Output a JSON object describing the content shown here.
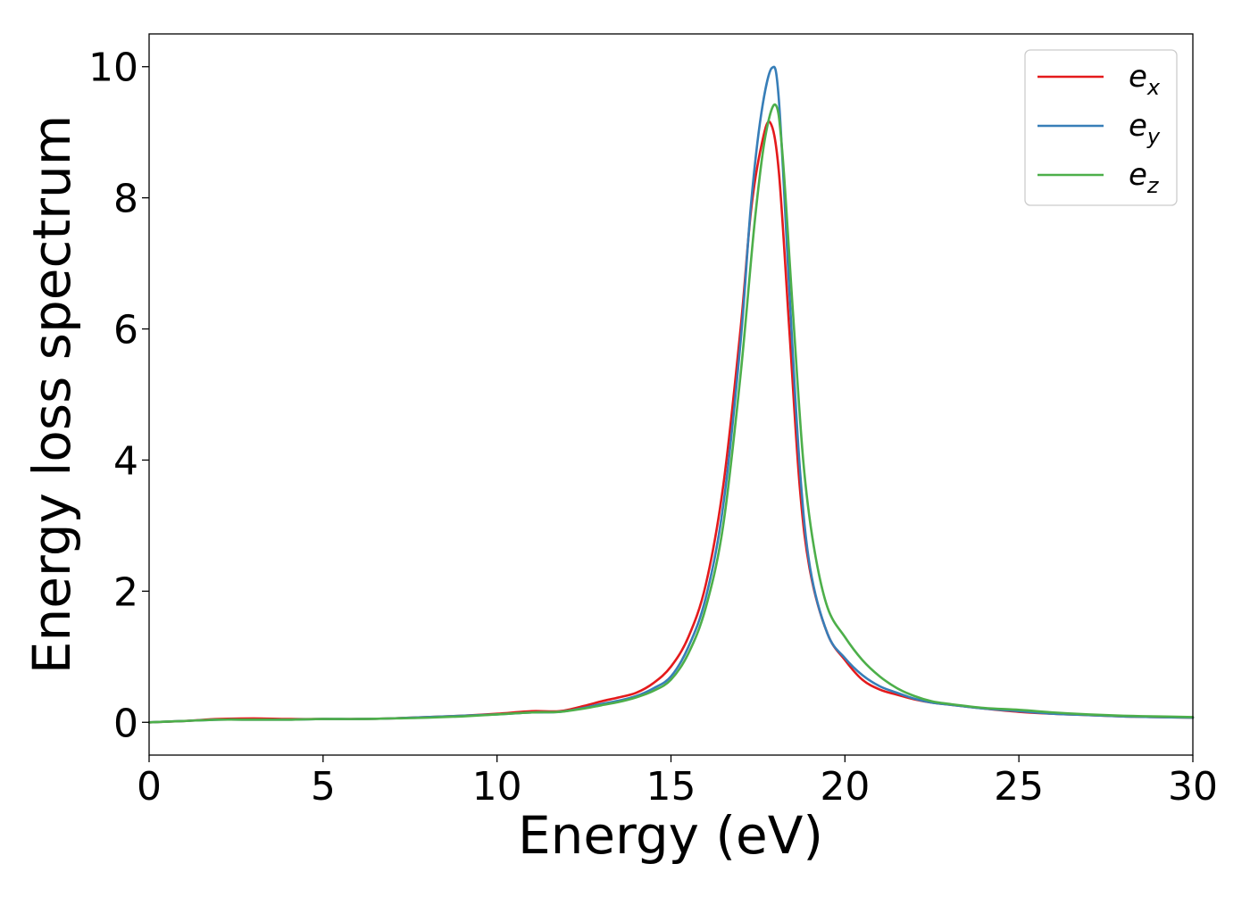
{
  "chart_data": {
    "type": "line",
    "title": "",
    "xlabel": "Energy (eV)",
    "ylabel": "Energy loss spectrum",
    "xlim": [
      0,
      30
    ],
    "ylim": [
      -0.5,
      10.5
    ],
    "xticks": [
      0,
      5,
      10,
      15,
      20,
      25,
      30
    ],
    "yticks": [
      0,
      2,
      4,
      6,
      8,
      10
    ],
    "grid": false,
    "legend_position": "top-right",
    "series": [
      {
        "name": "e",
        "subscript": "x",
        "color": "#e41a1c",
        "x": [
          0,
          1,
          2,
          3,
          4,
          5,
          6,
          7,
          8,
          9,
          10,
          11,
          11.8,
          12.5,
          13,
          13.5,
          14,
          14.5,
          15,
          15.5,
          16,
          16.5,
          17,
          17.3,
          17.6,
          17.85,
          18.1,
          18.4,
          18.7,
          19,
          19.5,
          20,
          20.5,
          21,
          21.5,
          22,
          22.5,
          23,
          24,
          25,
          26,
          27,
          28,
          29,
          30
        ],
        "y": [
          0.0,
          0.02,
          0.05,
          0.06,
          0.05,
          0.05,
          0.05,
          0.06,
          0.08,
          0.1,
          0.13,
          0.17,
          0.17,
          0.25,
          0.32,
          0.38,
          0.45,
          0.6,
          0.85,
          1.3,
          2.1,
          3.6,
          6.0,
          7.8,
          8.8,
          9.15,
          8.4,
          6.0,
          3.6,
          2.3,
          1.35,
          0.95,
          0.65,
          0.5,
          0.42,
          0.35,
          0.3,
          0.27,
          0.21,
          0.16,
          0.13,
          0.11,
          0.09,
          0.08,
          0.07
        ]
      },
      {
        "name": "e",
        "subscript": "y",
        "color": "#377eb8",
        "x": [
          0,
          1,
          2,
          3,
          4,
          5,
          6,
          7,
          8,
          9,
          10,
          11,
          11.8,
          12.5,
          13,
          13.5,
          14,
          14.5,
          15,
          15.5,
          16,
          16.5,
          17,
          17.3,
          17.6,
          17.9,
          18.1,
          18.4,
          18.7,
          19,
          19.5,
          20,
          20.5,
          21,
          21.5,
          22,
          22.5,
          23,
          24,
          25,
          26,
          27,
          28,
          29,
          30
        ],
        "y": [
          0.0,
          0.02,
          0.04,
          0.04,
          0.04,
          0.05,
          0.05,
          0.06,
          0.08,
          0.1,
          0.12,
          0.15,
          0.16,
          0.22,
          0.28,
          0.33,
          0.4,
          0.52,
          0.7,
          1.15,
          1.9,
          3.3,
          5.8,
          7.9,
          9.3,
          9.98,
          9.5,
          6.6,
          3.9,
          2.35,
          1.35,
          0.98,
          0.72,
          0.55,
          0.45,
          0.36,
          0.3,
          0.27,
          0.21,
          0.17,
          0.13,
          0.11,
          0.09,
          0.08,
          0.07
        ]
      },
      {
        "name": "e",
        "subscript": "z",
        "color": "#4daf4a",
        "x": [
          0,
          1,
          2,
          3,
          4,
          5,
          6,
          7,
          8,
          9,
          10,
          11,
          11.8,
          12.5,
          13,
          13.5,
          14,
          14.5,
          15,
          15.5,
          16,
          16.5,
          17,
          17.4,
          17.7,
          18.0,
          18.2,
          18.5,
          18.8,
          19.1,
          19.5,
          20,
          20.5,
          21,
          21.5,
          22,
          22.5,
          23,
          24,
          25,
          26,
          27,
          28,
          29,
          30
        ],
        "y": [
          0.0,
          0.02,
          0.04,
          0.04,
          0.04,
          0.05,
          0.05,
          0.06,
          0.07,
          0.09,
          0.12,
          0.15,
          0.16,
          0.21,
          0.26,
          0.31,
          0.38,
          0.48,
          0.65,
          1.05,
          1.75,
          3.0,
          5.3,
          7.6,
          8.9,
          9.42,
          8.7,
          6.3,
          4.0,
          2.7,
          1.75,
          1.3,
          0.95,
          0.7,
          0.52,
          0.4,
          0.32,
          0.28,
          0.22,
          0.19,
          0.15,
          0.12,
          0.1,
          0.09,
          0.08
        ]
      }
    ]
  }
}
